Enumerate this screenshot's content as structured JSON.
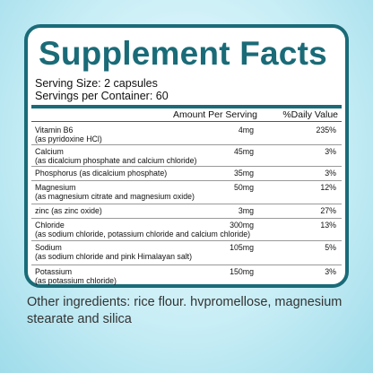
{
  "header": {
    "title": "Supplement Facts",
    "serving_size": "Serving Size: 2 capsules",
    "servings_per_container": "Servings per Container: 60"
  },
  "table": {
    "columns": [
      "Amount Per Serving",
      "%Daily Value"
    ],
    "rows": [
      {
        "name": "Vitamin B6",
        "source": "(as pyridoxine HCl)",
        "amount": "4mg",
        "daily_value": "235%"
      },
      {
        "name": "Calcium",
        "source": "(as dicalcium phosphate and calcium chloride)",
        "amount": "45mg",
        "daily_value": "3%"
      },
      {
        "name": "Phosphorus (as dicalcium phosphate)",
        "amount": "35mg",
        "daily_value": "3%"
      },
      {
        "name": "Magnesium",
        "source": "(as magnesium citrate and magnesium oxide)",
        "amount": "50mg",
        "daily_value": "12%"
      },
      {
        "name": "zinc (as zinc oxide)",
        "amount": "3mg",
        "daily_value": "27%"
      },
      {
        "name": "Chloride",
        "source": "(as sodium chloride, potassium chloride and calcium chloride)",
        "amount": "300mg",
        "daily_value": "13%"
      },
      {
        "name": "Sodium",
        "source": "(as sodium chloride and pink Himalayan salt)",
        "amount": "105mg",
        "daily_value": "5%"
      },
      {
        "name": "Potassium",
        "source": "(as potassium chloride)",
        "amount": "150mg",
        "daily_value": "3%"
      }
    ]
  },
  "footer": {
    "other_ingredients": "Other ingredients: rice flour. hvpromellose, magnesium stearate and silica"
  }
}
